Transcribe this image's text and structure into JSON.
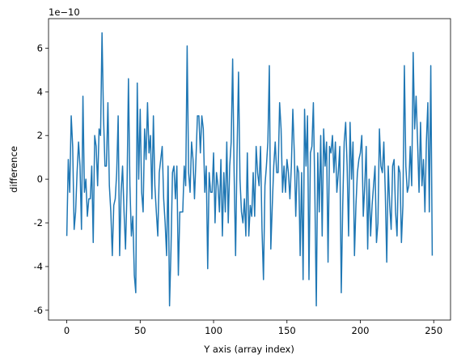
{
  "chart_data": {
    "type": "line",
    "xlabel": "Y axis (array index)",
    "ylabel": "difference",
    "y_offset_label": "1e−10",
    "x": [
      0,
      1,
      2,
      3,
      4,
      5,
      6,
      7,
      8,
      9,
      10,
      11,
      12,
      13,
      14,
      15,
      16,
      17,
      18,
      19,
      20,
      21,
      22,
      23,
      24,
      25,
      26,
      27,
      28,
      29,
      30,
      31,
      32,
      33,
      34,
      35,
      36,
      37,
      38,
      39,
      40,
      41,
      42,
      43,
      44,
      45,
      46,
      47,
      48,
      49,
      50,
      51,
      52,
      53,
      54,
      55,
      56,
      57,
      58,
      59,
      60,
      61,
      62,
      63,
      64,
      65,
      66,
      67,
      68,
      69,
      70,
      71,
      72,
      73,
      74,
      75,
      76,
      77,
      78,
      79,
      80,
      81,
      82,
      83,
      84,
      85,
      86,
      87,
      88,
      89,
      90,
      91,
      92,
      93,
      94,
      95,
      96,
      97,
      98,
      99,
      100,
      101,
      102,
      103,
      104,
      105,
      106,
      107,
      108,
      109,
      110,
      111,
      112,
      113,
      114,
      115,
      116,
      117,
      118,
      119,
      120,
      121,
      122,
      123,
      124,
      125,
      126,
      127,
      128,
      129,
      130,
      131,
      132,
      133,
      134,
      135,
      136,
      137,
      138,
      139,
      140,
      141,
      142,
      143,
      144,
      145,
      146,
      147,
      148,
      149,
      150,
      151,
      152,
      153,
      154,
      155,
      156,
      157,
      158,
      159,
      160,
      161,
      162,
      163,
      164,
      165,
      166,
      167,
      168,
      169,
      170,
      171,
      172,
      173,
      174,
      175,
      176,
      177,
      178,
      179,
      180,
      181,
      182,
      183,
      184,
      185,
      186,
      187,
      188,
      189,
      190,
      191,
      192,
      193,
      194,
      195,
      196,
      197,
      198,
      199,
      200,
      201,
      202,
      203,
      204,
      205,
      206,
      207,
      208,
      209,
      210,
      211,
      212,
      213,
      214,
      215,
      216,
      217,
      218,
      219,
      220,
      221,
      222,
      223,
      224,
      225,
      226,
      227,
      228,
      229,
      230,
      231,
      232,
      233,
      234,
      235,
      236,
      237,
      238,
      239,
      240,
      241,
      242,
      243,
      244,
      245,
      246,
      247,
      248,
      249
    ],
    "series": [
      {
        "color": "#1f77b4",
        "values": [
          -2.6,
          0.9,
          -0.6,
          2.9,
          1.5,
          -2.3,
          -1.5,
          0.3,
          1.7,
          0.6,
          -2.3,
          3.8,
          -0.6,
          0.0,
          -1.7,
          -0.9,
          -0.9,
          0.6,
          -2.9,
          2.0,
          1.5,
          -0.3,
          2.3,
          2.0,
          6.7,
          2.9,
          0.6,
          0.6,
          3.5,
          -0.3,
          -1.5,
          -3.5,
          -1.2,
          -0.9,
          0.3,
          2.9,
          -3.5,
          -0.6,
          0.6,
          -1.5,
          -3.2,
          -0.6,
          4.6,
          -0.3,
          -2.6,
          -1.7,
          -4.4,
          -5.2,
          4.4,
          0.0,
          3.2,
          -0.6,
          -1.5,
          2.3,
          0.9,
          3.5,
          1.2,
          2.0,
          -0.9,
          2.9,
          -0.3,
          -1.5,
          -2.6,
          0.3,
          0.9,
          1.5,
          -0.9,
          -2.0,
          -3.5,
          0.6,
          -5.8,
          -3.2,
          0.3,
          0.6,
          -0.9,
          0.6,
          -4.4,
          -1.5,
          -1.5,
          -1.5,
          0.6,
          -0.3,
          6.1,
          0.3,
          -0.6,
          1.7,
          0.9,
          -0.9,
          0.9,
          2.9,
          2.9,
          1.2,
          2.9,
          2.3,
          -0.6,
          0.6,
          -4.1,
          0.3,
          -0.6,
          -0.6,
          1.2,
          -2.0,
          0.3,
          -0.3,
          -1.5,
          0.9,
          -2.6,
          0.3,
          -1.5,
          1.7,
          -2.0,
          0.6,
          1.7,
          5.5,
          0.3,
          -3.5,
          1.2,
          4.9,
          0.0,
          -1.5,
          -2.0,
          -0.9,
          -2.6,
          1.2,
          -2.6,
          -1.2,
          -1.7,
          0.3,
          -1.7,
          1.5,
          0.3,
          -0.3,
          1.5,
          -2.3,
          -4.6,
          -0.3,
          0.6,
          1.7,
          5.2,
          -3.2,
          -1.2,
          0.6,
          1.7,
          0.3,
          0.3,
          3.5,
          2.3,
          -0.6,
          0.6,
          -0.6,
          0.9,
          0.3,
          -0.9,
          0.6,
          3.2,
          1.2,
          -1.7,
          0.6,
          0.3,
          -3.5,
          0.3,
          -4.6,
          3.2,
          0.6,
          2.9,
          -4.6,
          1.2,
          1.5,
          3.5,
          -0.6,
          -5.8,
          1.2,
          -1.5,
          2.0,
          -2.6,
          2.3,
          0.6,
          1.7,
          -3.8,
          1.5,
          1.2,
          2.0,
          0.3,
          1.7,
          -0.6,
          0.3,
          1.5,
          -5.2,
          -1.2,
          1.7,
          2.6,
          0.6,
          -2.6,
          2.6,
          0.0,
          1.7,
          -3.5,
          -1.2,
          0.3,
          0.9,
          1.2,
          2.0,
          -1.7,
          -0.3,
          1.5,
          -3.2,
          0.0,
          -2.6,
          -1.2,
          -0.3,
          0.6,
          -2.9,
          -2.0,
          2.3,
          0.6,
          0.3,
          1.7,
          -0.6,
          -3.8,
          0.6,
          -1.2,
          -2.3,
          0.6,
          0.9,
          -1.5,
          -2.6,
          0.6,
          0.3,
          -2.9,
          -1.2,
          5.2,
          0.6,
          -0.6,
          -0.3,
          1.5,
          -0.3,
          5.8,
          2.3,
          3.8,
          1.7,
          -0.6,
          2.6,
          -0.3,
          0.9,
          -1.5,
          1.7,
          3.5,
          -1.5,
          5.2,
          -3.5
        ]
      }
    ],
    "xlim": [
      -12.45,
      261.45
    ],
    "xticks": [
      0,
      50,
      100,
      150,
      200,
      250
    ],
    "ylim": [
      -6.45,
      7.35
    ],
    "yticks": [
      -6,
      -4,
      -2,
      0,
      2,
      4,
      6
    ]
  }
}
